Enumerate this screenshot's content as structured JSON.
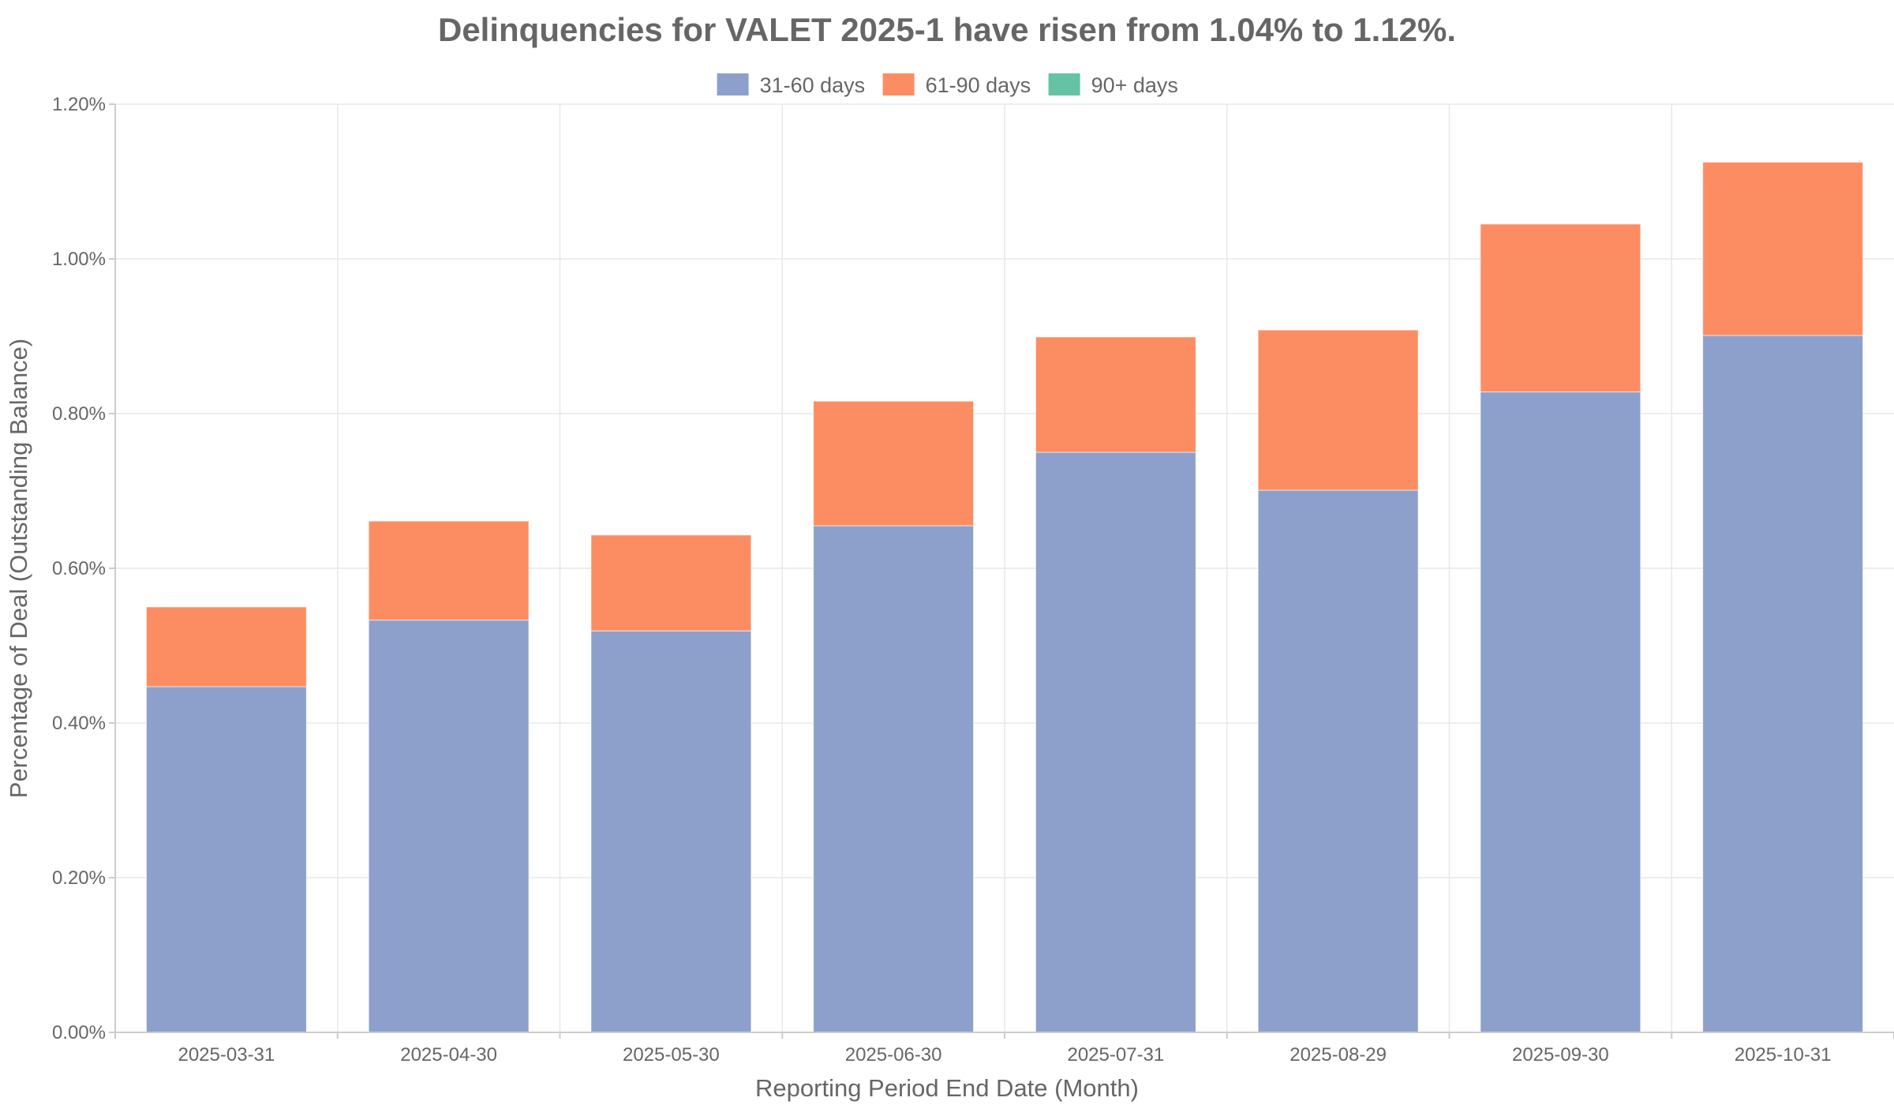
{
  "chart_data": {
    "type": "bar",
    "stacked": true,
    "title": "Delinquencies for VALET 2025-1 have risen from 1.04% to 1.12%.",
    "xlabel": "Reporting Period End Date (Month)",
    "ylabel": "Percentage of Deal (Outstanding Balance)",
    "ylim": [
      0,
      1.2
    ],
    "yticks": [
      0,
      0.2,
      0.4,
      0.6,
      0.8,
      1.0,
      1.2
    ],
    "ytick_labels": [
      "0.00%",
      "0.20%",
      "0.40%",
      "0.60%",
      "0.80%",
      "1.00%",
      "1.20%"
    ],
    "grid": true,
    "legend_position": "top-center",
    "categories": [
      "2025-03-31",
      "2025-04-30",
      "2025-05-30",
      "2025-06-30",
      "2025-07-31",
      "2025-08-29",
      "2025-09-30",
      "2025-10-31"
    ],
    "series": [
      {
        "name": "31-60 days",
        "color": "#8DA0CB",
        "values": [
          0.447,
          0.533,
          0.519,
          0.655,
          0.75,
          0.701,
          0.828,
          0.901
        ]
      },
      {
        "name": "61-90 days",
        "color": "#FC8D62",
        "values": [
          0.103,
          0.128,
          0.124,
          0.161,
          0.149,
          0.207,
          0.217,
          0.224
        ]
      },
      {
        "name": "90+ days",
        "color": "#66C2A5",
        "values": [
          0,
          0,
          0,
          0,
          0,
          0,
          0,
          0
        ]
      }
    ],
    "unit": "%"
  }
}
